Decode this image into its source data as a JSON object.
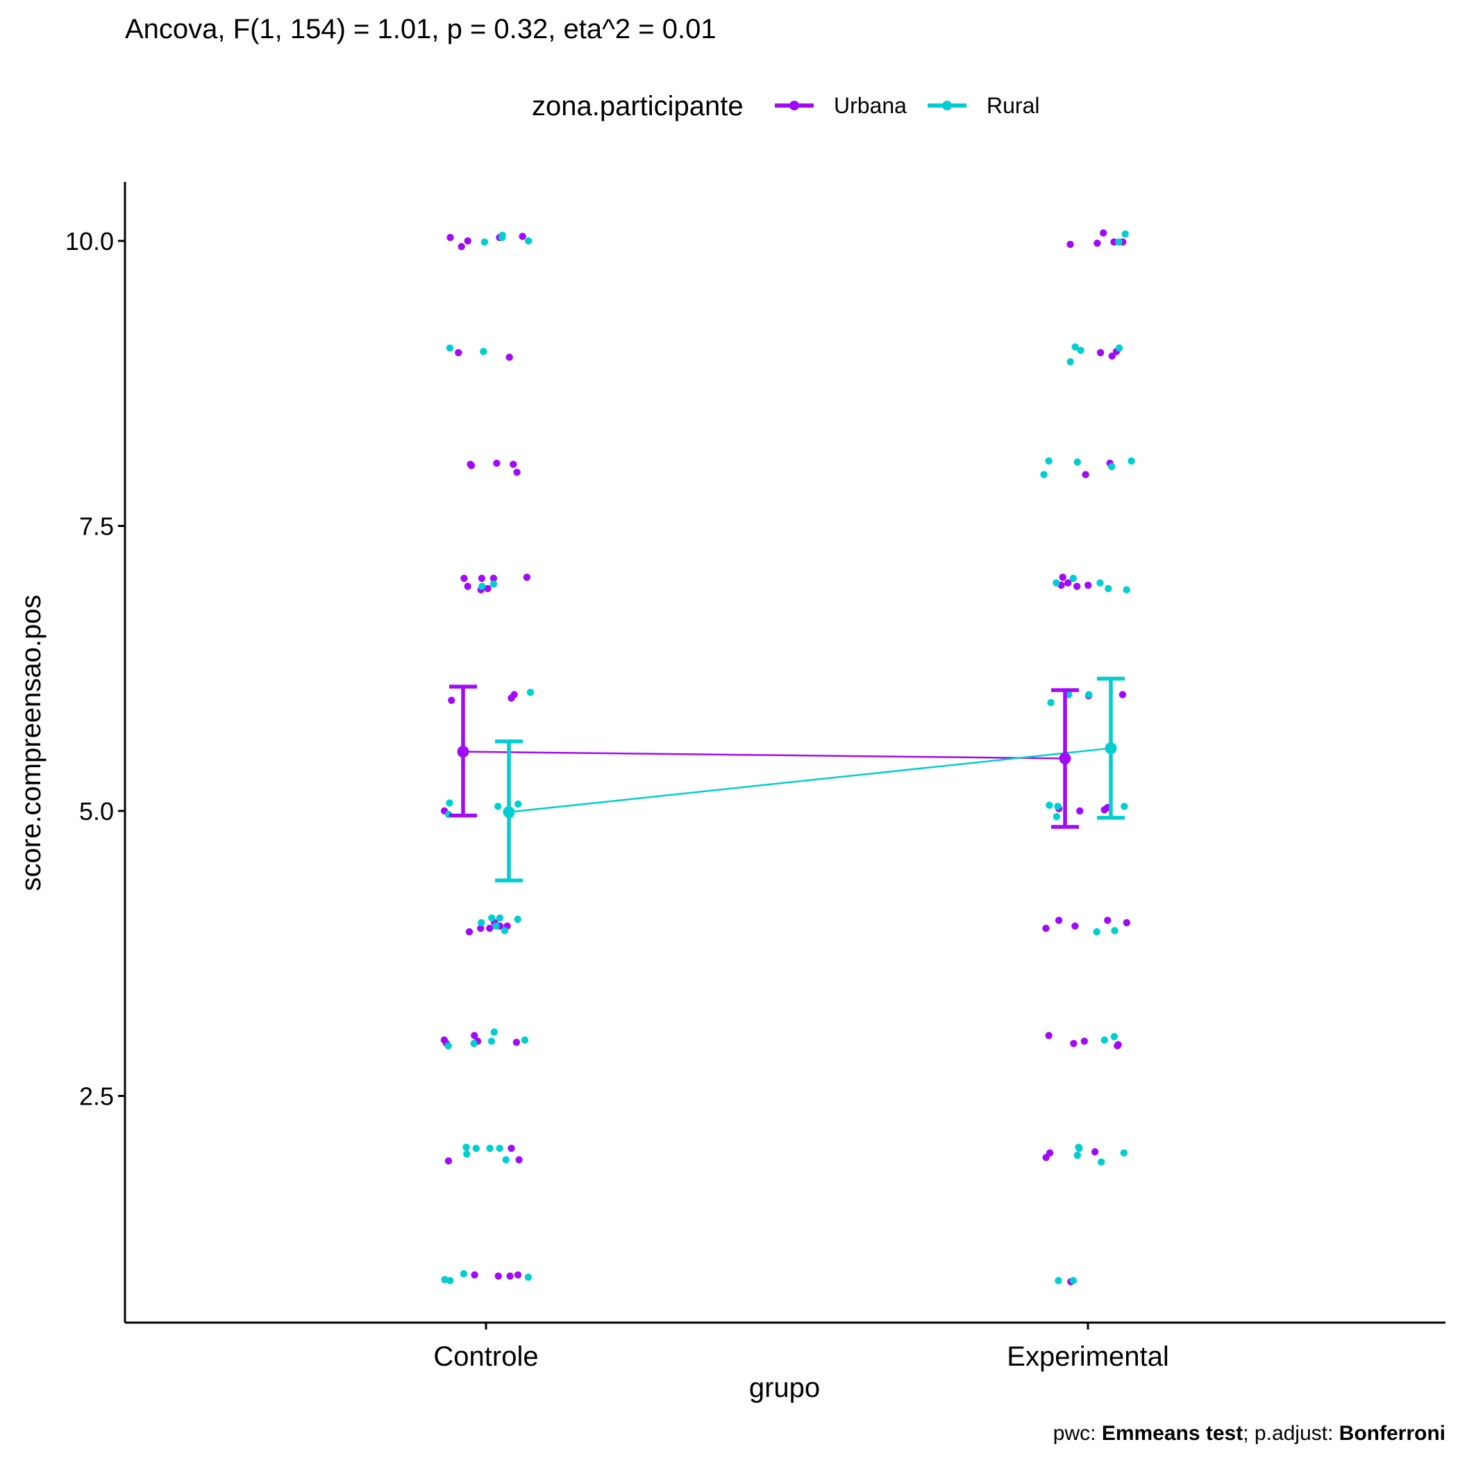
{
  "chart_data": {
    "type": "scatter",
    "subtitle": "Ancova, F(1, 154) = 1.01, p = 0.32, eta^2 = 0.01",
    "xlabel": "grupo",
    "ylabel": "score.compreensao.pos",
    "categories": [
      "Controle",
      "Experimental"
    ],
    "yticks": [
      "2.5",
      "5.0",
      "7.5",
      "10.0"
    ],
    "ytick_values": [
      2.5,
      5.0,
      7.5,
      10.0
    ],
    "ylim": [
      0.65,
      10.5
    ],
    "grid": false,
    "legend": {
      "title": "zona.participante",
      "position": "top",
      "entries": [
        {
          "name": "Urbana",
          "color": "#A10AF7"
        },
        {
          "name": "Rural",
          "color": "#00CED1"
        }
      ]
    },
    "caption": {
      "prefix": "pwc: ",
      "method": "Emmeans test",
      "middle": "; p.adjust: ",
      "adjust": "Bonferroni"
    },
    "series": [
      {
        "name": "Urbana",
        "color": "#A10AF7",
        "means": [
          5.52,
          5.46
        ],
        "ci_low": [
          4.96,
          4.86
        ],
        "ci_high": [
          6.09,
          6.06
        ],
        "points": {
          "Controle": [
            10.03,
            10.04,
            10.0,
            10.03,
            9.95,
            8.98,
            9.02,
            8.04,
            8.04,
            8.03,
            8.05,
            7.97,
            7.05,
            6.95,
            6.97,
            7.04,
            6.94,
            7.04,
            7.04,
            6.02,
            5.97,
            5.99,
            5.0,
            3.94,
            3.97,
            3.97,
            4.02,
            3.99,
            3.99,
            3.03,
            2.97,
            2.99,
            2.96,
            2.98,
            1.94,
            1.93,
            2.04,
            0.92,
            0.93,
            0.93,
            0.92
          ],
          "Experimental": [
            9.99,
            9.98,
            10.07,
            9.97,
            9.99,
            8.99,
            9.03,
            9.02,
            7.95,
            8.05,
            7.0,
            6.98,
            6.98,
            7.05,
            6.97,
            6.01,
            6.02,
            5.0,
            5.02,
            5.01,
            5.03,
            4.02,
            3.97,
            4.04,
            4.04,
            3.99,
            2.94,
            2.96,
            3.03,
            2.98,
            2.95,
            2.01,
            1.96,
            2.0,
            0.87
          ]
        }
      },
      {
        "name": "Rural",
        "color": "#00CED1",
        "means": [
          4.99,
          5.55
        ],
        "ci_low": [
          4.39,
          4.94
        ],
        "ci_high": [
          5.61,
          6.16
        ],
        "points": {
          "Controle": [
            10.0,
            9.99,
            10.03,
            10.05,
            9.03,
            9.06,
            6.99,
            6.97,
            6.04,
            5.07,
            5.06,
            4.97,
            5.04,
            4.97,
            4.05,
            3.99,
            4.06,
            4.06,
            4.02,
            3.95,
            3.06,
            2.98,
            2.99,
            2.94,
            2.96,
            2.04,
            2.04,
            2.05,
            1.99,
            2.04,
            1.94,
            0.94,
            0.89,
            0.88,
            0.91
          ],
          "Experimental": [
            10.06,
            9.99,
            9.06,
            9.04,
            9.07,
            8.94,
            8.07,
            8.07,
            8.02,
            7.95,
            8.06,
            7.0,
            6.94,
            6.95,
            7.04,
            7.0,
            6.02,
            6.02,
            5.95,
            4.95,
            5.04,
            5.04,
            5.05,
            3.94,
            3.95,
            2.99,
            3.02,
            2.05,
            2.04,
            2.0,
            1.98,
            1.92,
            0.88,
            0.88
          ]
        }
      }
    ]
  }
}
